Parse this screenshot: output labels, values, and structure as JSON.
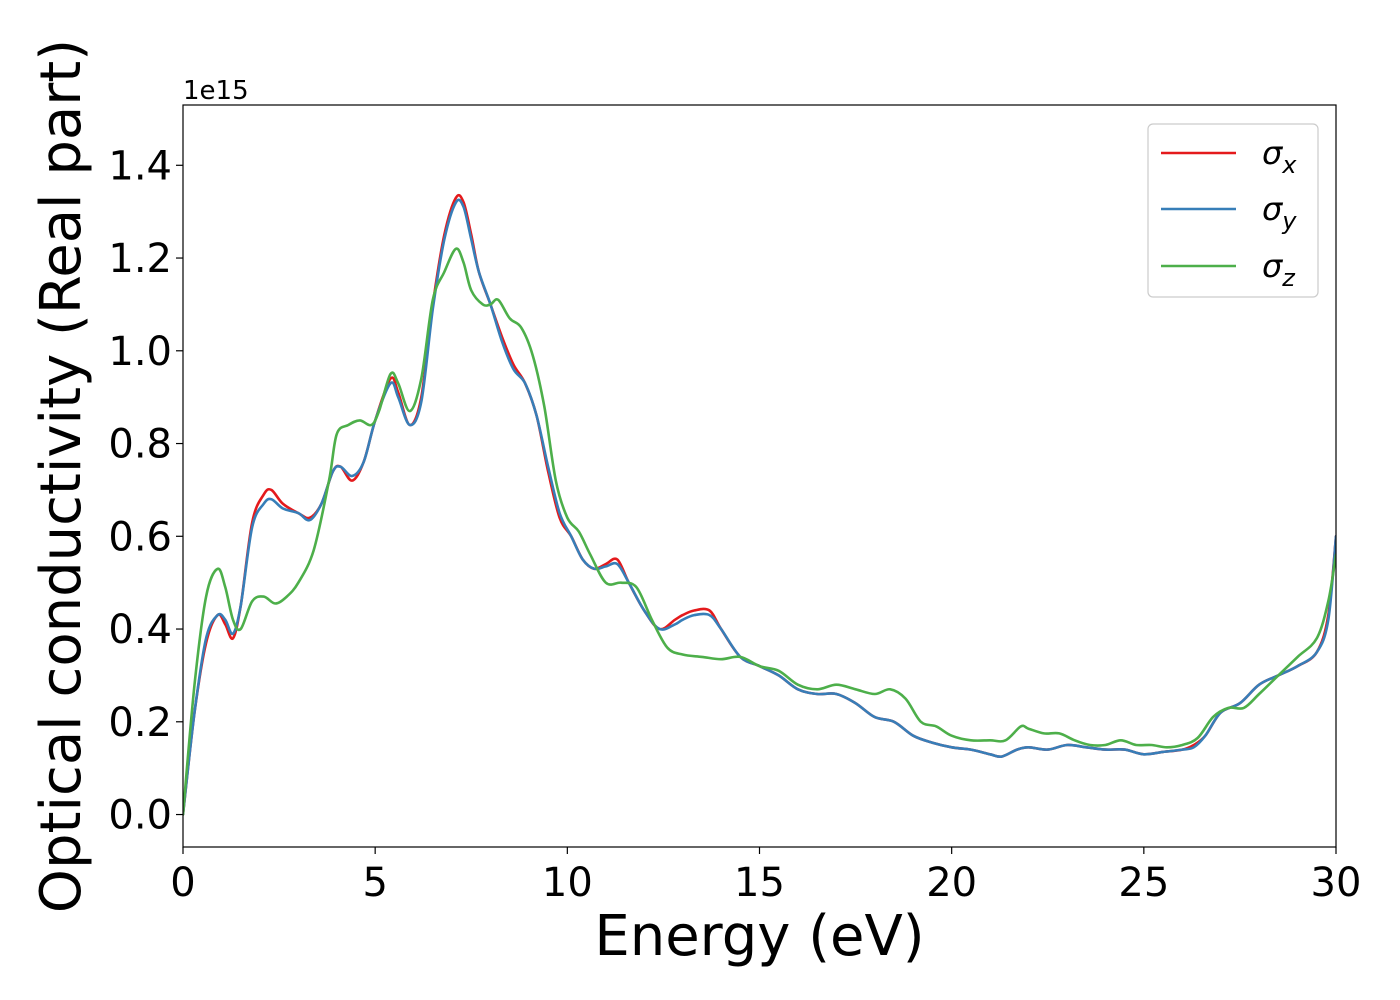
{
  "chart_data": {
    "type": "line",
    "title": "",
    "xlabel": "Energy (eV)",
    "ylabel": "Optical conductivity (Real part)",
    "y_offset_text": "1e15",
    "xlim": [
      0,
      30
    ],
    "ylim": [
      -0.07,
      1.53
    ],
    "x_ticks": [
      0,
      5,
      10,
      15,
      20,
      25,
      30
    ],
    "x_tick_labels": [
      "0",
      "5",
      "10",
      "15",
      "20",
      "25",
      "30"
    ],
    "y_ticks": [
      0.0,
      0.2,
      0.4,
      0.6,
      0.8,
      1.0,
      1.2,
      1.4
    ],
    "y_tick_labels": [
      "0.0",
      "0.2",
      "0.4",
      "0.6",
      "0.8",
      "1.0",
      "1.2",
      "1.4"
    ],
    "grid": false,
    "legend_position": "top-right",
    "series": [
      {
        "name": "σ_x",
        "legend_base": "σ",
        "legend_sub": "x",
        "color": "#e41a1c",
        "x": [
          0,
          0.3,
          0.6,
          0.9,
          1.1,
          1.3,
          1.5,
          1.8,
          2.1,
          2.3,
          2.6,
          3.0,
          3.3,
          3.6,
          3.9,
          4.1,
          4.4,
          4.7,
          5.0,
          5.4,
          5.6,
          5.9,
          6.2,
          6.5,
          6.8,
          7.1,
          7.3,
          7.5,
          7.7,
          8.0,
          8.3,
          8.6,
          8.9,
          9.2,
          9.5,
          9.8,
          10.1,
          10.4,
          10.7,
          11.0,
          11.3,
          11.6,
          12.0,
          12.4,
          12.8,
          13.0,
          13.3,
          13.7,
          14.0,
          14.5,
          15.0,
          15.5,
          16.0,
          16.5,
          17.0,
          17.5,
          18.0,
          18.5,
          19.0,
          19.5,
          20.0,
          20.5,
          21.0,
          21.3,
          21.7,
          22.0,
          22.5,
          23.0,
          23.5,
          24.0,
          24.5,
          25.0,
          25.5,
          26.0,
          26.3,
          26.6,
          27.0,
          27.5,
          28.0,
          28.5,
          29.0,
          29.5,
          29.8,
          30.0
        ],
        "y": [
          0.0,
          0.22,
          0.37,
          0.43,
          0.41,
          0.38,
          0.45,
          0.63,
          0.69,
          0.7,
          0.67,
          0.65,
          0.64,
          0.67,
          0.74,
          0.75,
          0.72,
          0.76,
          0.85,
          0.94,
          0.91,
          0.84,
          0.9,
          1.1,
          1.25,
          1.33,
          1.32,
          1.25,
          1.17,
          1.1,
          1.03,
          0.97,
          0.93,
          0.86,
          0.74,
          0.64,
          0.6,
          0.55,
          0.53,
          0.54,
          0.55,
          0.5,
          0.44,
          0.4,
          0.42,
          0.43,
          0.44,
          0.44,
          0.4,
          0.34,
          0.32,
          0.3,
          0.27,
          0.26,
          0.26,
          0.24,
          0.21,
          0.2,
          0.17,
          0.155,
          0.145,
          0.14,
          0.13,
          0.125,
          0.14,
          0.145,
          0.14,
          0.15,
          0.145,
          0.14,
          0.14,
          0.13,
          0.135,
          0.14,
          0.15,
          0.17,
          0.22,
          0.24,
          0.28,
          0.3,
          0.32,
          0.35,
          0.43,
          0.6
        ]
      },
      {
        "name": "σ_y",
        "legend_base": "σ",
        "legend_sub": "y",
        "color": "#377eb8",
        "x": [
          0,
          0.3,
          0.6,
          0.9,
          1.1,
          1.3,
          1.5,
          1.8,
          2.1,
          2.3,
          2.6,
          3.0,
          3.3,
          3.6,
          3.9,
          4.1,
          4.4,
          4.7,
          5.0,
          5.4,
          5.6,
          5.9,
          6.2,
          6.5,
          6.8,
          7.1,
          7.3,
          7.5,
          7.7,
          8.0,
          8.3,
          8.6,
          8.9,
          9.2,
          9.5,
          9.8,
          10.1,
          10.4,
          10.7,
          11.0,
          11.3,
          11.6,
          12.0,
          12.4,
          12.8,
          13.0,
          13.3,
          13.7,
          14.0,
          14.5,
          15.0,
          15.5,
          16.0,
          16.5,
          17.0,
          17.5,
          18.0,
          18.5,
          19.0,
          19.5,
          20.0,
          20.5,
          21.0,
          21.3,
          21.7,
          22.0,
          22.5,
          23.0,
          23.5,
          24.0,
          24.5,
          25.0,
          25.5,
          26.0,
          26.3,
          26.6,
          27.0,
          27.5,
          28.0,
          28.5,
          29.0,
          29.5,
          29.8,
          30.0
        ],
        "y": [
          0.0,
          0.22,
          0.38,
          0.43,
          0.42,
          0.39,
          0.45,
          0.62,
          0.67,
          0.68,
          0.66,
          0.65,
          0.635,
          0.67,
          0.74,
          0.75,
          0.73,
          0.76,
          0.85,
          0.93,
          0.9,
          0.84,
          0.89,
          1.09,
          1.24,
          1.32,
          1.31,
          1.24,
          1.17,
          1.1,
          1.02,
          0.96,
          0.93,
          0.86,
          0.75,
          0.65,
          0.6,
          0.55,
          0.53,
          0.535,
          0.54,
          0.5,
          0.44,
          0.4,
          0.41,
          0.42,
          0.43,
          0.43,
          0.4,
          0.34,
          0.32,
          0.3,
          0.27,
          0.26,
          0.26,
          0.24,
          0.21,
          0.2,
          0.17,
          0.155,
          0.145,
          0.14,
          0.13,
          0.125,
          0.14,
          0.145,
          0.14,
          0.15,
          0.145,
          0.14,
          0.14,
          0.13,
          0.135,
          0.14,
          0.145,
          0.17,
          0.22,
          0.24,
          0.28,
          0.3,
          0.32,
          0.35,
          0.42,
          0.6
        ]
      },
      {
        "name": "σ_z",
        "legend_base": "σ",
        "legend_sub": "z",
        "color": "#4daf4a",
        "x": [
          0,
          0.3,
          0.6,
          0.9,
          1.1,
          1.3,
          1.5,
          1.8,
          2.1,
          2.4,
          2.7,
          3.0,
          3.4,
          3.8,
          4.0,
          4.3,
          4.6,
          4.9,
          5.1,
          5.4,
          5.6,
          5.9,
          6.2,
          6.5,
          6.8,
          7.1,
          7.3,
          7.5,
          7.8,
          8.0,
          8.2,
          8.5,
          8.8,
          9.1,
          9.4,
          9.7,
          10.0,
          10.3,
          10.6,
          11.0,
          11.4,
          11.8,
          12.2,
          12.6,
          13.0,
          13.5,
          14.0,
          14.5,
          15.0,
          15.5,
          16.0,
          16.5,
          17.0,
          17.5,
          18.0,
          18.4,
          18.8,
          19.2,
          19.6,
          20.0,
          20.5,
          21.0,
          21.4,
          21.8,
          22.0,
          22.4,
          22.8,
          23.2,
          23.6,
          24.0,
          24.4,
          24.8,
          25.2,
          25.6,
          26.0,
          26.4,
          26.8,
          27.2,
          27.6,
          28.0,
          28.5,
          29.0,
          29.5,
          29.8,
          30.0
        ],
        "y": [
          0.0,
          0.28,
          0.47,
          0.53,
          0.49,
          0.42,
          0.4,
          0.46,
          0.47,
          0.455,
          0.47,
          0.5,
          0.57,
          0.72,
          0.82,
          0.84,
          0.85,
          0.84,
          0.87,
          0.95,
          0.93,
          0.87,
          0.94,
          1.11,
          1.17,
          1.22,
          1.19,
          1.13,
          1.1,
          1.1,
          1.11,
          1.07,
          1.05,
          0.99,
          0.88,
          0.72,
          0.64,
          0.61,
          0.56,
          0.5,
          0.5,
          0.49,
          0.42,
          0.36,
          0.345,
          0.34,
          0.335,
          0.34,
          0.32,
          0.31,
          0.28,
          0.27,
          0.28,
          0.27,
          0.26,
          0.27,
          0.25,
          0.2,
          0.19,
          0.17,
          0.16,
          0.16,
          0.16,
          0.19,
          0.185,
          0.175,
          0.175,
          0.16,
          0.15,
          0.15,
          0.16,
          0.15,
          0.15,
          0.145,
          0.15,
          0.165,
          0.21,
          0.23,
          0.23,
          0.26,
          0.3,
          0.34,
          0.38,
          0.46,
          0.56
        ]
      }
    ]
  }
}
